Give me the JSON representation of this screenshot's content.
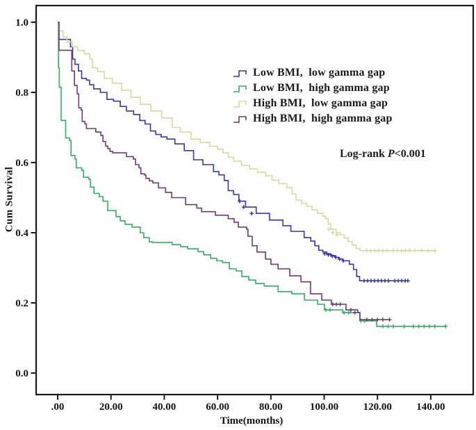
{
  "figure": {
    "background": "#ffffff",
    "frame_color": "#1a1a1a"
  },
  "chart_data": {
    "type": "line",
    "subtype": "kaplan-meier-step",
    "title": "",
    "xlabel": "Time(months)",
    "ylabel": "Cum Survival",
    "xlim": [
      -8,
      156
    ],
    "ylim": [
      -0.06,
      1.05
    ],
    "grid": "off",
    "legend_position": "inside-upper-right",
    "x_ticks": {
      "values": [
        0,
        20,
        40,
        60,
        80,
        100,
        120,
        140
      ],
      "labels": [
        ".00",
        "20.00",
        "40.00",
        "60.00",
        "80.00",
        "100.00",
        "120.00",
        "140.00"
      ]
    },
    "y_ticks": {
      "values": [
        0.0,
        0.2,
        0.4,
        0.6,
        0.8,
        1.0
      ],
      "labels": [
        "0.0",
        "0.2",
        "0.4",
        "0.6",
        "0.8",
        "1.0"
      ]
    },
    "annotation": {
      "prefix": "Log-rank ",
      "p_symbol": "P",
      "value": "<0.001"
    },
    "series": [
      {
        "label": "Low BMI,  low gamma gap",
        "color": "#3438a2",
        "points": [
          [
            0,
            1.0
          ],
          [
            0.5,
            0.951
          ],
          [
            4.8,
            0.93
          ],
          [
            5.6,
            0.895
          ],
          [
            6.5,
            0.88
          ],
          [
            7.8,
            0.861
          ],
          [
            9,
            0.84
          ],
          [
            10.8,
            0.835
          ],
          [
            12,
            0.822
          ],
          [
            13.5,
            0.81
          ],
          [
            16,
            0.8
          ],
          [
            18.5,
            0.78
          ],
          [
            21,
            0.775
          ],
          [
            23.5,
            0.76
          ],
          [
            25.8,
            0.747
          ],
          [
            28.5,
            0.737
          ],
          [
            30.8,
            0.72
          ],
          [
            32.8,
            0.71
          ],
          [
            34.8,
            0.69
          ],
          [
            36.8,
            0.68
          ],
          [
            38.8,
            0.673
          ],
          [
            41,
            0.667
          ],
          [
            44,
            0.653
          ],
          [
            47.5,
            0.634
          ],
          [
            51,
            0.608
          ],
          [
            54.5,
            0.594
          ],
          [
            58.5,
            0.574
          ],
          [
            60.5,
            0.565
          ],
          [
            62.5,
            0.549
          ],
          [
            64,
            0.52
          ],
          [
            66,
            0.509
          ],
          [
            68,
            0.49
          ],
          [
            70.5,
            0.473
          ],
          [
            74.5,
            0.455
          ],
          [
            79.5,
            0.436
          ],
          [
            84.5,
            0.42
          ],
          [
            87.5,
            0.404
          ],
          [
            92.5,
            0.386
          ],
          [
            95,
            0.376
          ],
          [
            96.5,
            0.363
          ],
          [
            98,
            0.35
          ],
          [
            99.5,
            0.345
          ],
          [
            101,
            0.34
          ],
          [
            102.5,
            0.335
          ],
          [
            104,
            0.33
          ],
          [
            105.5,
            0.325
          ],
          [
            107,
            0.32
          ],
          [
            109.5,
            0.31
          ],
          [
            111,
            0.295
          ],
          [
            112.2,
            0.275
          ],
          [
            113.3,
            0.263
          ],
          [
            131.5,
            0.263
          ]
        ],
        "censors": [
          [
            68.3,
            0.49
          ],
          [
            69.8,
            0.473
          ],
          [
            72.8,
            0.455
          ],
          [
            100.2,
            0.34
          ],
          [
            101.6,
            0.337
          ],
          [
            103,
            0.333
          ],
          [
            104.4,
            0.33
          ],
          [
            105.8,
            0.325
          ],
          [
            107.2,
            0.32
          ],
          [
            115,
            0.263
          ],
          [
            116.3,
            0.263
          ],
          [
            117.6,
            0.263
          ],
          [
            118.9,
            0.263
          ],
          [
            120.2,
            0.263
          ],
          [
            121.5,
            0.263
          ],
          [
            122.8,
            0.263
          ],
          [
            124.1,
            0.263
          ],
          [
            126.5,
            0.263
          ],
          [
            127.8,
            0.263
          ],
          [
            129.1,
            0.263
          ],
          [
            130.4,
            0.263
          ],
          [
            131.4,
            0.263
          ]
        ]
      },
      {
        "label": "Low BMI,  high gamma gap",
        "color": "#2fb05f",
        "points": [
          [
            0,
            1.0
          ],
          [
            0.3,
            0.87
          ],
          [
            0.6,
            0.815
          ],
          [
            1.3,
            0.72
          ],
          [
            3,
            0.67
          ],
          [
            4.4,
            0.663
          ],
          [
            5,
            0.62
          ],
          [
            6.5,
            0.61
          ],
          [
            7,
            0.585
          ],
          [
            9,
            0.578
          ],
          [
            9.7,
            0.558
          ],
          [
            11.7,
            0.552
          ],
          [
            12.3,
            0.53
          ],
          [
            13.6,
            0.512
          ],
          [
            15.6,
            0.503
          ],
          [
            17,
            0.49
          ],
          [
            18.8,
            0.463
          ],
          [
            21.9,
            0.446
          ],
          [
            23.5,
            0.434
          ],
          [
            25.3,
            0.424
          ],
          [
            27.9,
            0.416
          ],
          [
            31,
            0.4
          ],
          [
            32.3,
            0.386
          ],
          [
            34.4,
            0.374
          ],
          [
            35.5,
            0.372
          ],
          [
            43,
            0.366
          ],
          [
            46.2,
            0.36
          ],
          [
            48.8,
            0.354
          ],
          [
            52.7,
            0.346
          ],
          [
            54.8,
            0.337
          ],
          [
            57.4,
            0.327
          ],
          [
            59.7,
            0.32
          ],
          [
            61.8,
            0.315
          ],
          [
            64.4,
            0.297
          ],
          [
            67,
            0.291
          ],
          [
            69.1,
            0.275
          ],
          [
            71.7,
            0.265
          ],
          [
            74.3,
            0.255
          ],
          [
            77.5,
            0.248
          ],
          [
            82.7,
            0.232
          ],
          [
            87.9,
            0.226
          ],
          [
            92.6,
            0.208
          ],
          [
            97.5,
            0.196
          ],
          [
            100.1,
            0.18
          ],
          [
            106.9,
            0.172
          ],
          [
            113.4,
            0.149
          ],
          [
            119.7,
            0.133
          ],
          [
            146,
            0.133
          ]
        ],
        "censors": [
          [
            100.6,
            0.18
          ],
          [
            102.2,
            0.18
          ],
          [
            107.5,
            0.172
          ],
          [
            109.2,
            0.172
          ],
          [
            113.8,
            0.149
          ],
          [
            115.2,
            0.149
          ],
          [
            122,
            0.133
          ],
          [
            124,
            0.133
          ],
          [
            126,
            0.133
          ],
          [
            130,
            0.133
          ],
          [
            133.5,
            0.133
          ],
          [
            135.5,
            0.133
          ],
          [
            137.5,
            0.133
          ],
          [
            139.5,
            0.133
          ],
          [
            141.5,
            0.133
          ],
          [
            145.5,
            0.133
          ]
        ]
      },
      {
        "label": "High BMI,  low gamma gap",
        "color": "#d8d89c",
        "points": [
          [
            0,
            1.0
          ],
          [
            0.6,
            0.975
          ],
          [
            2,
            0.958
          ],
          [
            3.5,
            0.944
          ],
          [
            5.5,
            0.93
          ],
          [
            7.5,
            0.92
          ],
          [
            10,
            0.91
          ],
          [
            12,
            0.895
          ],
          [
            13,
            0.87
          ],
          [
            15,
            0.859
          ],
          [
            17.5,
            0.84
          ],
          [
            20.5,
            0.826
          ],
          [
            24,
            0.806
          ],
          [
            27.5,
            0.786
          ],
          [
            31,
            0.766
          ],
          [
            35,
            0.747
          ],
          [
            39,
            0.727
          ],
          [
            43,
            0.7
          ],
          [
            46,
            0.687
          ],
          [
            50,
            0.667
          ],
          [
            53.5,
            0.657
          ],
          [
            57,
            0.647
          ],
          [
            60,
            0.638
          ],
          [
            62,
            0.628
          ],
          [
            64,
            0.615
          ],
          [
            66,
            0.604
          ],
          [
            69,
            0.592
          ],
          [
            72,
            0.582
          ],
          [
            75,
            0.572
          ],
          [
            78,
            0.562
          ],
          [
            80.5,
            0.55
          ],
          [
            83,
            0.54
          ],
          [
            86,
            0.528
          ],
          [
            88,
            0.51
          ],
          [
            89.5,
            0.493
          ],
          [
            91.5,
            0.484
          ],
          [
            93.5,
            0.475
          ],
          [
            95.5,
            0.465
          ],
          [
            97.5,
            0.455
          ],
          [
            99.5,
            0.447
          ],
          [
            100.5,
            0.44
          ],
          [
            101.5,
            0.425
          ],
          [
            102.5,
            0.41
          ],
          [
            104.5,
            0.4
          ],
          [
            106,
            0.394
          ],
          [
            107.5,
            0.385
          ],
          [
            109,
            0.375
          ],
          [
            110.5,
            0.365
          ],
          [
            112,
            0.355
          ],
          [
            113.5,
            0.349
          ],
          [
            142,
            0.349
          ]
        ],
        "censors": [
          [
            101.8,
            0.41
          ],
          [
            103.2,
            0.4
          ],
          [
            104.8,
            0.394
          ],
          [
            116,
            0.349
          ],
          [
            117.5,
            0.349
          ],
          [
            119,
            0.349
          ],
          [
            120.5,
            0.349
          ],
          [
            122,
            0.349
          ],
          [
            123.5,
            0.349
          ],
          [
            126,
            0.349
          ],
          [
            127.5,
            0.349
          ],
          [
            129,
            0.349
          ],
          [
            130.5,
            0.349
          ],
          [
            132,
            0.349
          ],
          [
            134,
            0.349
          ],
          [
            136.5,
            0.349
          ],
          [
            139,
            0.349
          ],
          [
            141.5,
            0.349
          ]
        ]
      },
      {
        "label": "High BMI,  high gamma gap",
        "color": "#6f3a72",
        "points": [
          [
            0,
            1.0
          ],
          [
            0.5,
            0.92
          ],
          [
            5.3,
            0.861
          ],
          [
            6.3,
            0.82
          ],
          [
            7.3,
            0.796
          ],
          [
            7.9,
            0.756
          ],
          [
            8.8,
            0.75
          ],
          [
            9.2,
            0.717
          ],
          [
            10.2,
            0.71
          ],
          [
            10.8,
            0.697
          ],
          [
            14.3,
            0.687
          ],
          [
            16.2,
            0.677
          ],
          [
            17,
            0.66
          ],
          [
            18,
            0.647
          ],
          [
            18.8,
            0.64
          ],
          [
            19.6,
            0.632
          ],
          [
            20.6,
            0.628
          ],
          [
            25.8,
            0.617
          ],
          [
            28.4,
            0.61
          ],
          [
            29.2,
            0.594
          ],
          [
            30.5,
            0.585
          ],
          [
            31.2,
            0.568
          ],
          [
            32.6,
            0.565
          ],
          [
            33.1,
            0.555
          ],
          [
            34.4,
            0.548
          ],
          [
            35.7,
            0.542
          ],
          [
            37.8,
            0.528
          ],
          [
            40.5,
            0.515
          ],
          [
            42.8,
            0.5
          ],
          [
            48,
            0.48
          ],
          [
            52.2,
            0.47
          ],
          [
            54,
            0.46
          ],
          [
            59.2,
            0.45
          ],
          [
            64,
            0.44
          ],
          [
            66.2,
            0.43
          ],
          [
            67.8,
            0.416
          ],
          [
            70.9,
            0.41
          ],
          [
            71.4,
            0.39
          ],
          [
            73,
            0.363
          ],
          [
            74.8,
            0.345
          ],
          [
            78,
            0.325
          ],
          [
            80,
            0.31
          ],
          [
            82.7,
            0.297
          ],
          [
            87.1,
            0.277
          ],
          [
            91.3,
            0.26
          ],
          [
            94.9,
            0.226
          ],
          [
            99.1,
            0.208
          ],
          [
            102.7,
            0.196
          ],
          [
            108.2,
            0.18
          ],
          [
            112.6,
            0.172
          ],
          [
            113.4,
            0.152
          ],
          [
            125,
            0.152
          ]
        ],
        "censors": [
          [
            103.2,
            0.196
          ],
          [
            104.6,
            0.196
          ],
          [
            106,
            0.196
          ],
          [
            110,
            0.18
          ],
          [
            111.5,
            0.172
          ],
          [
            116,
            0.152
          ],
          [
            118,
            0.152
          ],
          [
            120,
            0.152
          ],
          [
            122,
            0.152
          ],
          [
            124.5,
            0.152
          ]
        ]
      }
    ]
  }
}
